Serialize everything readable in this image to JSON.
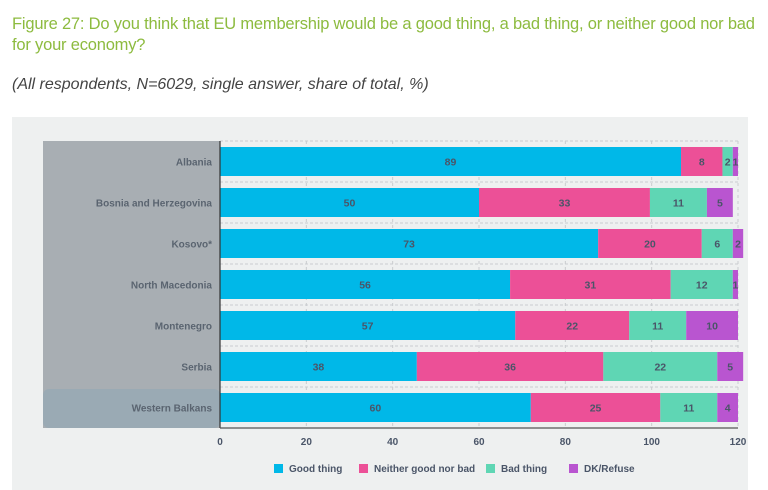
{
  "header": {
    "title": "Figure 27: Do you think that EU membership would be a good thing, a bad thing, or neither good nor bad for your economy?",
    "subtitle": "(All respondents, N=6029, single answer, share of total, %)"
  },
  "chart_data": {
    "type": "bar",
    "orientation": "horizontal",
    "stacked": true,
    "title": "Do you think that EU membership would be a good thing, a bad thing, or neither good nor bad for your economy?",
    "xlabel": "",
    "ylabel": "",
    "xlim": [
      0,
      120
    ],
    "x_ticks": [
      "0",
      "20",
      "40",
      "60",
      "80",
      "100",
      "120"
    ],
    "grid": true,
    "legend_position": "bottom",
    "categories": [
      "Albania",
      "Bosnia and Herzegovina",
      "Kosovo*",
      "North Macedonia",
      "Montenegro",
      "Serbia",
      "Western Balkans"
    ],
    "highlight_category": "Western Balkans",
    "series": [
      {
        "name": "Good thing",
        "color": "#00b8e8",
        "values": [
          89,
          50,
          73,
          56,
          57,
          38,
          60
        ]
      },
      {
        "name": "Neither good nor bad",
        "color": "#ec5097",
        "values": [
          8,
          33,
          20,
          31,
          22,
          36,
          25
        ]
      },
      {
        "name": "Bad thing",
        "color": "#5fd6b4",
        "values": [
          2,
          11,
          6,
          12,
          11,
          22,
          11
        ]
      },
      {
        "name": "DK/Refuse",
        "color": "#b955d0",
        "values": [
          1,
          5,
          2,
          1,
          10,
          5,
          4
        ]
      }
    ]
  }
}
